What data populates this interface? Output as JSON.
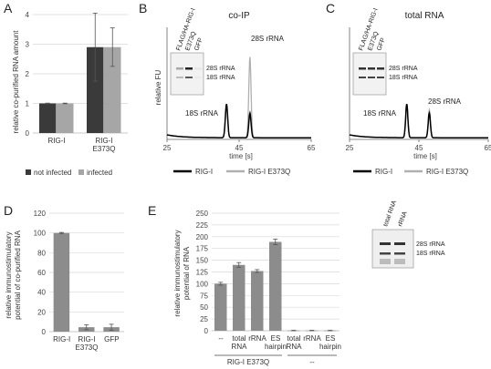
{
  "chart_data": [
    {
      "panel": "A",
      "type": "bar",
      "ylabel": "relative co-purified RNA amount",
      "ylim": [
        0,
        4
      ],
      "yticks": [
        0,
        1,
        2,
        3,
        4
      ],
      "categories": [
        "RIG-I",
        "RIG-I E373Q"
      ],
      "category_lines": [
        [
          "RIG-I"
        ],
        [
          "RIG-I",
          "E373Q"
        ]
      ],
      "series": [
        {
          "name": "not infected",
          "color": "#3a3a3a",
          "values": [
            1.0,
            2.9
          ],
          "errors": [
            0.01,
            1.15
          ]
        },
        {
          "name": "infected",
          "color": "#a6a6a6",
          "values": [
            1.0,
            2.9
          ],
          "errors": [
            0.01,
            0.65
          ]
        }
      ],
      "legend": "bottom"
    },
    {
      "panel": "B",
      "type": "line",
      "title": "co-IP",
      "xlabel": "time [s]",
      "ylabel": "relative FU",
      "xlim": [
        25,
        65
      ],
      "xticks": [
        25,
        45,
        65
      ],
      "annotations": [
        "28S rRNA",
        "18S rRNA"
      ],
      "peaks": [
        {
          "label": "18S rRNA",
          "x": 41.5
        },
        {
          "label": "28S rRNA",
          "x": 48.0
        }
      ],
      "series": [
        {
          "name": "RIG-I",
          "color": "#000000",
          "peak_heights": [
            0.3,
            0.22
          ]
        },
        {
          "name": "RIG-I E373Q",
          "color": "#b0b0b0",
          "peak_heights": [
            0.28,
            0.72
          ]
        }
      ],
      "inset": {
        "lanes": [
          "FLAG/HA-RIG-I",
          "E373Q",
          "GFP"
        ],
        "bands": [
          "28S rRNA",
          "18S rRNA"
        ]
      },
      "legend": "bottom"
    },
    {
      "panel": "C",
      "type": "line",
      "title": "total RNA",
      "xlabel": "time [s]",
      "xlim": [
        25,
        65
      ],
      "xticks": [
        25,
        45,
        65
      ],
      "annotations": [
        "28S rRNA",
        "18S rRNA"
      ],
      "peaks": [
        {
          "label": "18S rRNA",
          "x": 41.5
        },
        {
          "label": "28S rRNA",
          "x": 48.0
        }
      ],
      "series": [
        {
          "name": "RIG-I",
          "color": "#000000",
          "peak_heights": [
            0.3,
            0.22
          ]
        },
        {
          "name": "RIG-I E373Q",
          "color": "#b0b0b0",
          "peak_heights": [
            0.29,
            0.25
          ]
        }
      ],
      "inset": {
        "lanes": [
          "FLAG/HA-RIG-I",
          "E373Q",
          "GFP"
        ],
        "bands": [
          "28S rRNA",
          "18S rRNA"
        ]
      },
      "legend": "bottom"
    },
    {
      "panel": "D",
      "type": "bar",
      "ylabel_lines": [
        "relative immunostimulatory",
        "potential of co-purified RNA"
      ],
      "ylim": [
        0,
        120
      ],
      "yticks": [
        0,
        20,
        40,
        60,
        80,
        100,
        120
      ],
      "categories": [
        "RIG-I",
        "RIG-I E373Q",
        "GFP"
      ],
      "category_lines": [
        [
          "RIG-I"
        ],
        [
          "RIG-I",
          "E373Q"
        ],
        [
          "GFP"
        ]
      ],
      "series": [
        {
          "color": "#8c8c8c",
          "values": [
            100,
            4.5,
            4.5
          ],
          "errors": [
            0.5,
            2.5,
            3.0
          ]
        }
      ]
    },
    {
      "panel": "E",
      "type": "bar",
      "ylabel_lines": [
        "relative immunostimulatory",
        "potential of RNA"
      ],
      "ylim": [
        0,
        250
      ],
      "yticks": [
        0,
        25,
        50,
        75,
        100,
        125,
        150,
        175,
        200,
        225,
        250
      ],
      "categories": [
        "--",
        "total RNA",
        "rRNA",
        "ES hairpin",
        "total RNA",
        "rRNA",
        "ES hairpin"
      ],
      "category_lines": [
        [
          "--"
        ],
        [
          "total",
          "RNA"
        ],
        [
          "rRNA"
        ],
        [
          "ES",
          "hairpin"
        ],
        [
          "total",
          "RNA"
        ],
        [
          "rRNA"
        ],
        [
          "ES",
          "hairpin"
        ]
      ],
      "groups": [
        {
          "label": "RIG-I E373Q",
          "from": 0,
          "to": 3
        },
        {
          "label": "--",
          "from": 4,
          "to": 6
        }
      ],
      "series": [
        {
          "color": "#8c8c8c",
          "values": [
            100,
            140,
            127,
            189,
            0.5,
            0.5,
            0.5
          ],
          "errors": [
            3,
            5,
            3,
            6,
            0.5,
            0.5,
            0.5
          ]
        }
      ],
      "inset": {
        "lanes": [
          "total RNA",
          "rRNA"
        ],
        "bands": [
          "28S rRNA",
          "18S rRNA"
        ]
      }
    }
  ]
}
